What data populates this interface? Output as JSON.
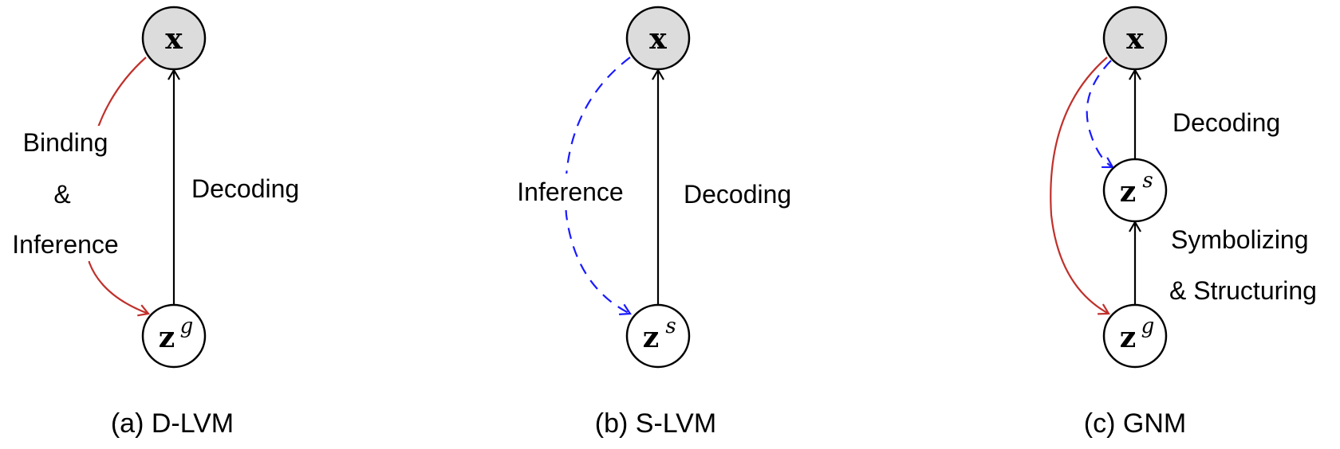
{
  "panels": [
    {
      "caption": "(a) D-LVM",
      "top_node": {
        "var": "x"
      },
      "bottom_node": {
        "var": "z",
        "sup": "g"
      },
      "decoding_label": "Decoding",
      "inference_label_lines": [
        "Binding",
        "&",
        "Inference"
      ]
    },
    {
      "caption": "(b) S-LVM",
      "top_node": {
        "var": "x"
      },
      "bottom_node": {
        "var": "z",
        "sup": "s"
      },
      "decoding_label": "Decoding",
      "inference_label": "Inference"
    },
    {
      "caption": "(c) GNM",
      "top_node": {
        "var": "x"
      },
      "middle_node": {
        "var": "z",
        "sup": "s"
      },
      "bottom_node": {
        "var": "z",
        "sup": "g"
      },
      "decoding_label": "Decoding",
      "symbolizing_label_lines": [
        "Symbolizing",
        "& Structuring"
      ]
    }
  ],
  "colors": {
    "observed_fill": "#dcdcdc",
    "binding_arrow": "#c0302b",
    "inference_arrow": "#1a1aff",
    "decoding_arrow": "#000000"
  }
}
